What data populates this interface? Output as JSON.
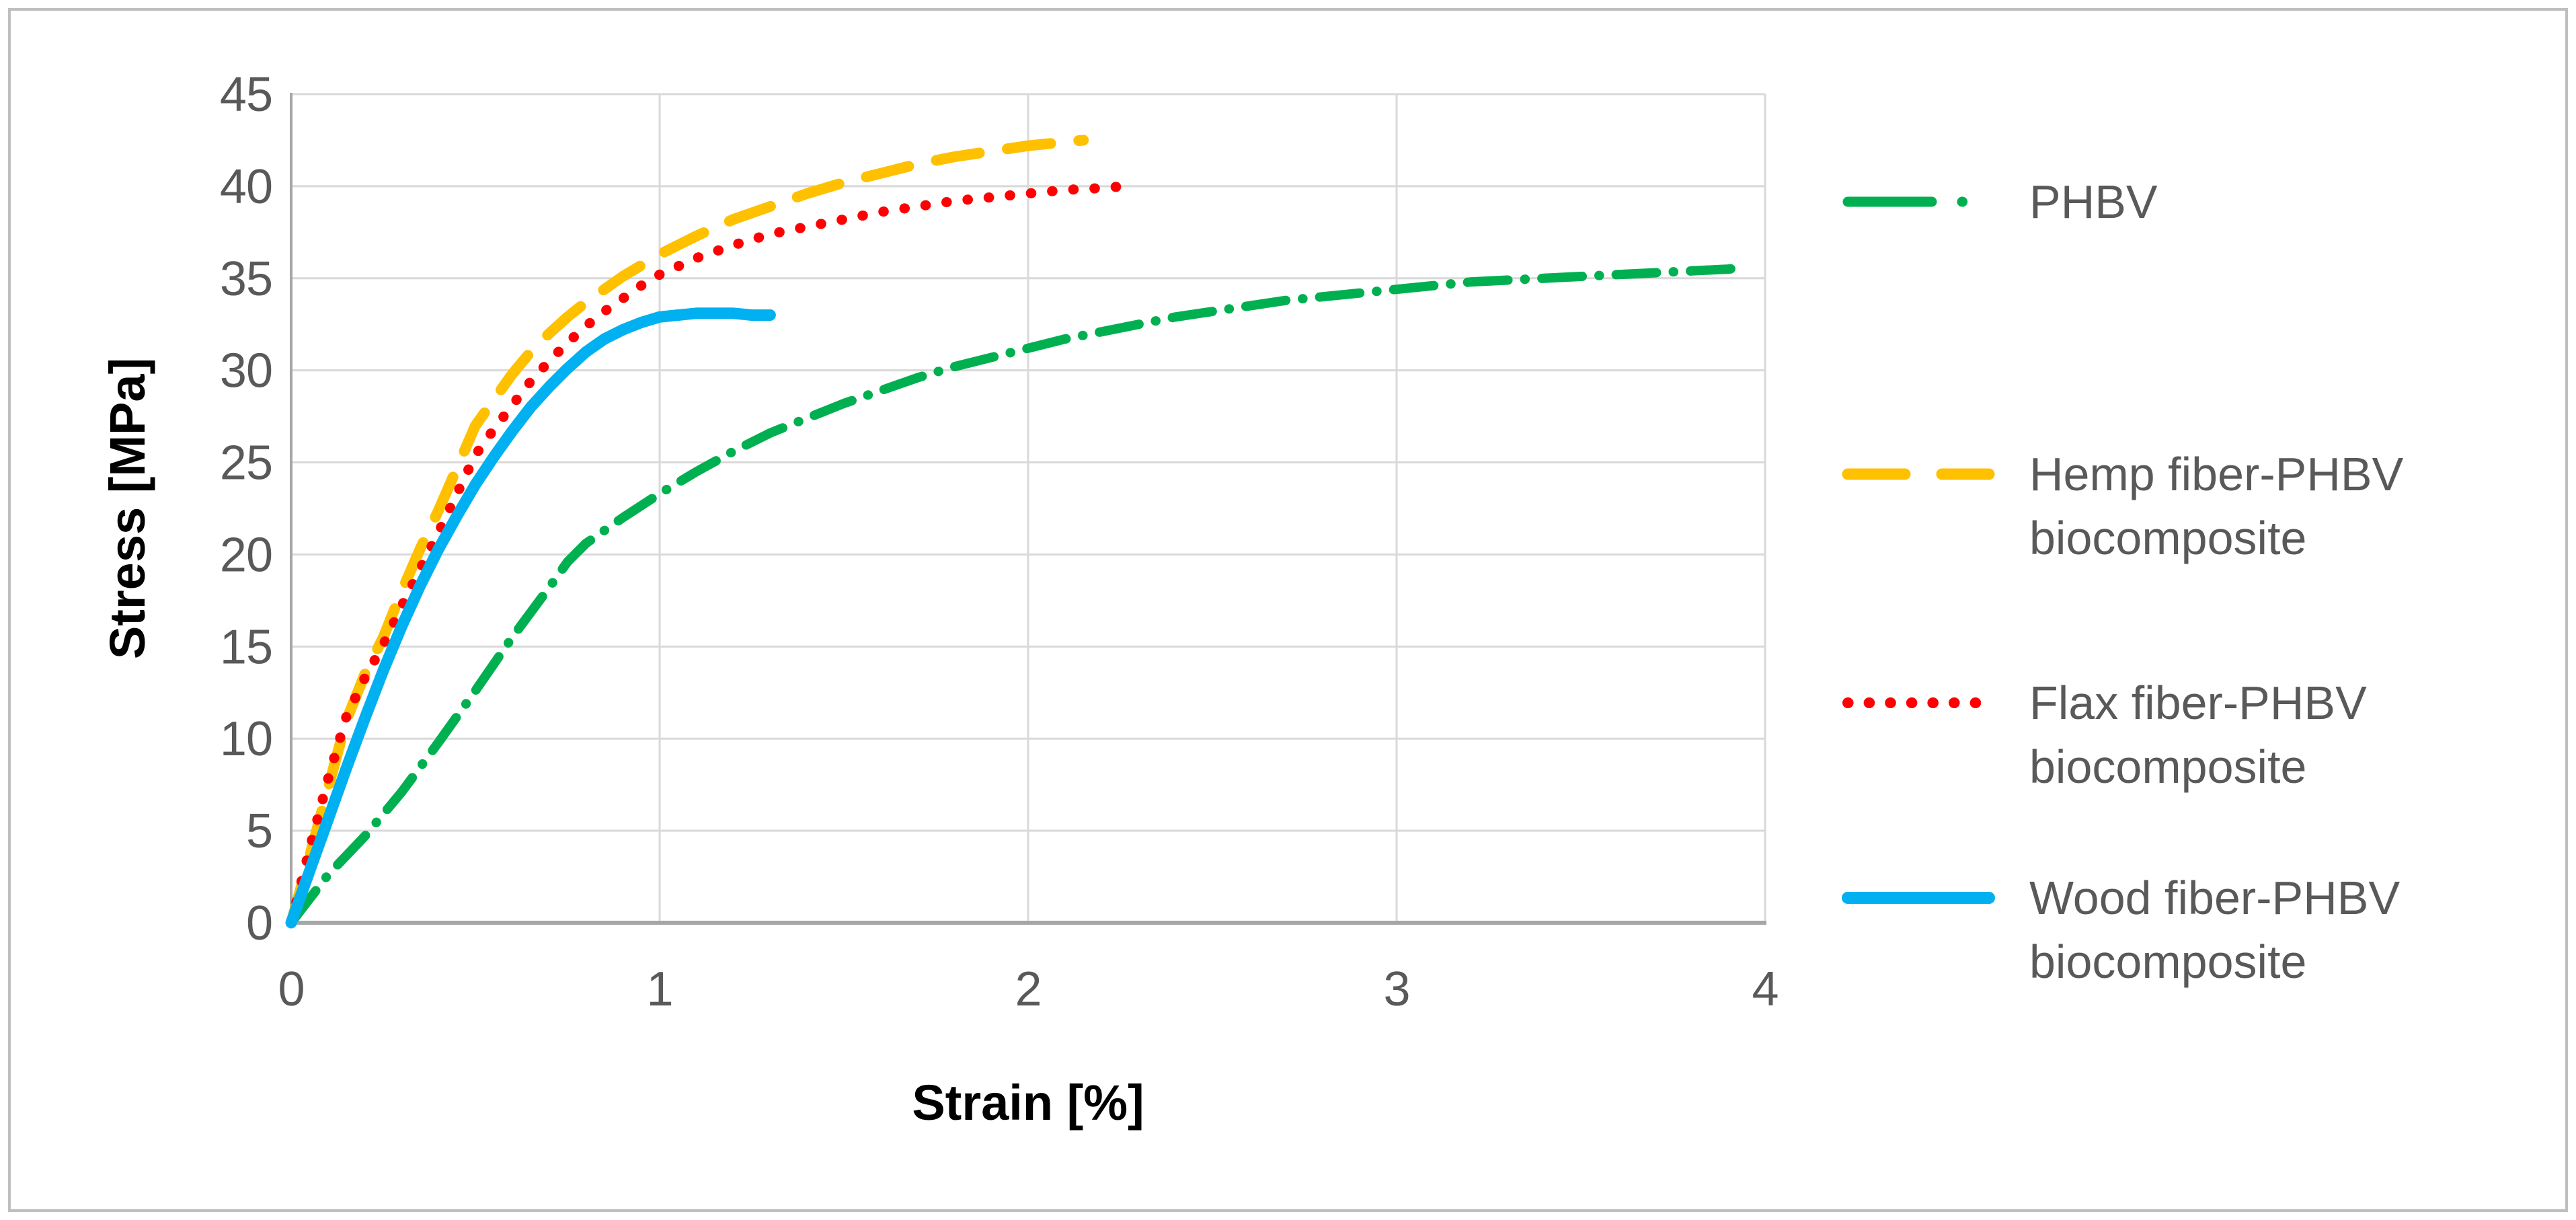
{
  "figure": {
    "background_color": "#FFFFFF",
    "border_color": "#BFBFBF"
  },
  "axis_style": {
    "tick_label_color": "#595959",
    "gridline_color": "#D9D9D9",
    "axis_line_color": "#A6A6A6",
    "title_color": "#000000"
  },
  "chart_data": {
    "type": "line",
    "title": "",
    "xlabel": "Strain [%]",
    "ylabel": "Stress [MPa]",
    "xlim": [
      0,
      4
    ],
    "ylim": [
      0,
      45
    ],
    "x_ticks": [
      0,
      1,
      2,
      3,
      4
    ],
    "y_ticks": [
      0,
      5,
      10,
      15,
      20,
      25,
      30,
      35,
      40,
      45
    ],
    "grid": "both",
    "legend_position": "right",
    "series": [
      {
        "name": "PHBV",
        "legend_lines": [
          "PHBV"
        ],
        "color": "#00B050",
        "line_style": "dash-dot",
        "points": [
          [
            0,
            0
          ],
          [
            0.1,
            2.6
          ],
          [
            0.2,
            4.7
          ],
          [
            0.3,
            7.1
          ],
          [
            0.4,
            9.8
          ],
          [
            0.5,
            12.6
          ],
          [
            0.6,
            15.5
          ],
          [
            0.7,
            18.2
          ],
          [
            0.75,
            19.6
          ],
          [
            0.8,
            20.6
          ],
          [
            0.9,
            22.0
          ],
          [
            1.0,
            23.3
          ],
          [
            1.1,
            24.5
          ],
          [
            1.2,
            25.6
          ],
          [
            1.3,
            26.6
          ],
          [
            1.4,
            27.4
          ],
          [
            1.5,
            28.2
          ],
          [
            1.6,
            28.9
          ],
          [
            1.7,
            29.6
          ],
          [
            1.8,
            30.2
          ],
          [
            1.9,
            30.7
          ],
          [
            2.0,
            31.2
          ],
          [
            2.1,
            31.7
          ],
          [
            2.2,
            32.1
          ],
          [
            2.3,
            32.5
          ],
          [
            2.4,
            32.9
          ],
          [
            2.5,
            33.2
          ],
          [
            2.6,
            33.5
          ],
          [
            2.7,
            33.8
          ],
          [
            2.8,
            34.0
          ],
          [
            2.9,
            34.2
          ],
          [
            3.0,
            34.4
          ],
          [
            3.1,
            34.6
          ],
          [
            3.2,
            34.8
          ],
          [
            3.3,
            34.9
          ],
          [
            3.4,
            35.0
          ],
          [
            3.5,
            35.1
          ],
          [
            3.6,
            35.2
          ],
          [
            3.7,
            35.3
          ],
          [
            3.8,
            35.4
          ],
          [
            3.9,
            35.5
          ],
          [
            3.95,
            35.6
          ]
        ]
      },
      {
        "name": "Hemp fiber-PHBV biocomposite",
        "legend_lines": [
          "Hemp fiber-PHBV",
          "biocomposite"
        ],
        "color": "#FFC000",
        "line_style": "dashed",
        "points": [
          [
            0,
            0
          ],
          [
            0.05,
            3.6
          ],
          [
            0.1,
            7.3
          ],
          [
            0.15,
            11.0
          ],
          [
            0.2,
            13.5
          ],
          [
            0.25,
            15.5
          ],
          [
            0.3,
            18.0
          ],
          [
            0.35,
            20.3
          ],
          [
            0.4,
            22.4
          ],
          [
            0.45,
            24.7
          ],
          [
            0.5,
            27.0
          ],
          [
            0.55,
            28.4
          ],
          [
            0.6,
            29.8
          ],
          [
            0.65,
            31.0
          ],
          [
            0.7,
            32.0
          ],
          [
            0.75,
            32.9
          ],
          [
            0.8,
            33.7
          ],
          [
            0.85,
            34.4
          ],
          [
            0.9,
            35.1
          ],
          [
            0.95,
            35.7
          ],
          [
            1.0,
            36.3
          ],
          [
            1.1,
            37.3
          ],
          [
            1.2,
            38.2
          ],
          [
            1.3,
            38.9
          ],
          [
            1.4,
            39.6
          ],
          [
            1.5,
            40.2
          ],
          [
            1.6,
            40.7
          ],
          [
            1.7,
            41.2
          ],
          [
            1.8,
            41.6
          ],
          [
            1.9,
            41.9
          ],
          [
            2.0,
            42.2
          ],
          [
            2.1,
            42.4
          ],
          [
            2.15,
            42.5
          ]
        ]
      },
      {
        "name": "Flax fiber-PHBV biocomposite",
        "legend_lines": [
          "Flax fiber-PHBV",
          "biocomposite"
        ],
        "color": "#FF0000",
        "line_style": "dotted",
        "points": [
          [
            0,
            0
          ],
          [
            0.05,
            4.0
          ],
          [
            0.1,
            7.8
          ],
          [
            0.15,
            11.2
          ],
          [
            0.2,
            13.3
          ],
          [
            0.25,
            15.1
          ],
          [
            0.3,
            17.2
          ],
          [
            0.35,
            19.2
          ],
          [
            0.4,
            21.2
          ],
          [
            0.45,
            23.3
          ],
          [
            0.5,
            25.4
          ],
          [
            0.55,
            26.8
          ],
          [
            0.6,
            28.1
          ],
          [
            0.65,
            29.4
          ],
          [
            0.7,
            30.5
          ],
          [
            0.75,
            31.5
          ],
          [
            0.8,
            32.4
          ],
          [
            0.85,
            33.2
          ],
          [
            0.9,
            33.9
          ],
          [
            0.95,
            34.6
          ],
          [
            1.0,
            35.2
          ],
          [
            1.1,
            36.1
          ],
          [
            1.2,
            36.8
          ],
          [
            1.3,
            37.4
          ],
          [
            1.4,
            37.8
          ],
          [
            1.5,
            38.2
          ],
          [
            1.6,
            38.6
          ],
          [
            1.7,
            38.9
          ],
          [
            1.8,
            39.2
          ],
          [
            1.9,
            39.4
          ],
          [
            2.0,
            39.6
          ],
          [
            2.1,
            39.8
          ],
          [
            2.2,
            39.9
          ],
          [
            2.26,
            40.0
          ]
        ]
      },
      {
        "name": "Wood fiber-PHBV biocomposite",
        "legend_lines": [
          "Wood fiber-PHBV",
          "biocomposite"
        ],
        "color": "#00B0F0",
        "line_style": "solid",
        "points": [
          [
            0,
            0
          ],
          [
            0.05,
            2.8
          ],
          [
            0.1,
            5.6
          ],
          [
            0.15,
            8.4
          ],
          [
            0.2,
            11.1
          ],
          [
            0.25,
            13.7
          ],
          [
            0.3,
            16.1
          ],
          [
            0.35,
            18.3
          ],
          [
            0.4,
            20.3
          ],
          [
            0.45,
            22.1
          ],
          [
            0.5,
            23.8
          ],
          [
            0.55,
            25.3
          ],
          [
            0.6,
            26.7
          ],
          [
            0.65,
            28.0
          ],
          [
            0.7,
            29.1
          ],
          [
            0.75,
            30.1
          ],
          [
            0.8,
            31.0
          ],
          [
            0.85,
            31.7
          ],
          [
            0.9,
            32.2
          ],
          [
            0.95,
            32.6
          ],
          [
            1.0,
            32.9
          ],
          [
            1.05,
            33.0
          ],
          [
            1.1,
            33.1
          ],
          [
            1.15,
            33.1
          ],
          [
            1.2,
            33.1
          ],
          [
            1.25,
            33.0
          ],
          [
            1.3,
            33.0
          ]
        ]
      }
    ]
  }
}
